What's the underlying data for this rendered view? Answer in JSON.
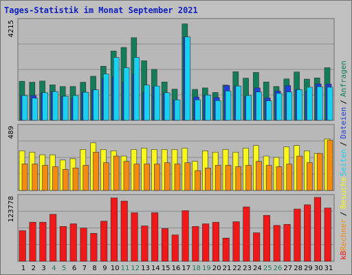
{
  "title": "Tages-Statistik im Monat September 2021",
  "colors": {
    "title": "#1020c0",
    "frame_bg": "#c0c0c0",
    "plot_bg": "#b8b8b8",
    "grid": "#8c8c8c",
    "anfragen": "#137d59",
    "dateien": "#1f3ee0",
    "seiten": "#19d2f2",
    "besuche": "#f8f81c",
    "rechner": "#f48a10",
    "kb": "#f01818",
    "weekday": "#000000",
    "weekend": "#1a7a5a"
  },
  "chart_data": [
    {
      "type": "bar",
      "panel": "hits",
      "ymax_label": "4215",
      "ylim": [
        0,
        4215
      ],
      "categories": [
        "1",
        "2",
        "3",
        "4",
        "5",
        "6",
        "7",
        "8",
        "9",
        "10",
        "11",
        "12",
        "13",
        "14",
        "15",
        "16",
        "17",
        "18",
        "19",
        "20",
        "21",
        "22",
        "23",
        "24",
        "25",
        "26",
        "27",
        "28",
        "29",
        "30",
        "31"
      ],
      "weekend": [
        false,
        false,
        false,
        true,
        true,
        false,
        false,
        false,
        false,
        false,
        true,
        true,
        false,
        false,
        false,
        false,
        false,
        true,
        true,
        false,
        false,
        false,
        false,
        false,
        true,
        true,
        false,
        false,
        false,
        false,
        false
      ],
      "series": [
        {
          "name": "Anfragen",
          "values": [
            1640,
            1600,
            1650,
            1490,
            1420,
            1420,
            1600,
            1850,
            2270,
            2910,
            3060,
            3470,
            2500,
            2140,
            1610,
            1310,
            4050,
            1300,
            1360,
            1170,
            1480,
            2040,
            1770,
            2010,
            1610,
            1420,
            1740,
            2030,
            1730,
            1780,
            2210
          ]
        },
        {
          "name": "Dateien",
          "values": [
            1040,
            1040,
            1160,
            1210,
            1010,
            930,
            1180,
            1280,
            1760,
            1830,
            1600,
            1950,
            1180,
            1410,
            1140,
            860,
            3500,
            980,
            1060,
            960,
            1460,
            1440,
            1010,
            1360,
            940,
            1230,
            1460,
            1300,
            1220,
            1530,
            1520
          ]
        },
        {
          "name": "Seiten",
          "values": [
            1040,
            930,
            1160,
            1210,
            1010,
            1040,
            1180,
            1280,
            1950,
            2640,
            2210,
            2640,
            1480,
            1440,
            1160,
            860,
            3500,
            860,
            1060,
            830,
            1230,
            1440,
            1040,
            1190,
            820,
            1130,
            1190,
            1290,
            1390,
            1410,
            1390
          ]
        }
      ]
    },
    {
      "type": "bar",
      "panel": "visits",
      "ymax_label": "489",
      "ylim": [
        0,
        489
      ],
      "series": [
        {
          "name": "Besuche",
          "values": [
            300,
            290,
            270,
            270,
            230,
            240,
            310,
            360,
            310,
            300,
            260,
            310,
            320,
            310,
            310,
            310,
            320,
            220,
            300,
            290,
            310,
            290,
            320,
            340,
            260,
            250,
            330,
            340,
            300,
            280,
            390
          ]
        },
        {
          "name": "Rechner",
          "values": [
            200,
            200,
            190,
            180,
            160,
            170,
            190,
            290,
            210,
            260,
            220,
            200,
            200,
            200,
            210,
            200,
            210,
            150,
            170,
            190,
            190,
            180,
            190,
            220,
            190,
            180,
            200,
            260,
            210,
            280,
            380
          ]
        }
      ]
    },
    {
      "type": "bar",
      "panel": "kb",
      "ymax_label": "123778",
      "ylim": [
        0,
        123778
      ],
      "series": [
        {
          "name": "kB",
          "values": [
            58000,
            74000,
            74000,
            89000,
            66000,
            71000,
            63000,
            53000,
            76000,
            120000,
            114000,
            92000,
            67000,
            92000,
            62000,
            50000,
            96000,
            66000,
            71000,
            74000,
            44000,
            75000,
            103000,
            54000,
            87000,
            68000,
            70000,
            99000,
            107000,
            121000,
            101000
          ]
        }
      ]
    }
  ],
  "right_labels": {
    "kb": "kB",
    "rechner": "Rechner",
    "sep1": "/",
    "besuche": "Besuche",
    "seiten": "Seiten",
    "sep2": "/",
    "dateien": "Dateien",
    "sep3": "/",
    "anfragen": "Anfragen"
  }
}
